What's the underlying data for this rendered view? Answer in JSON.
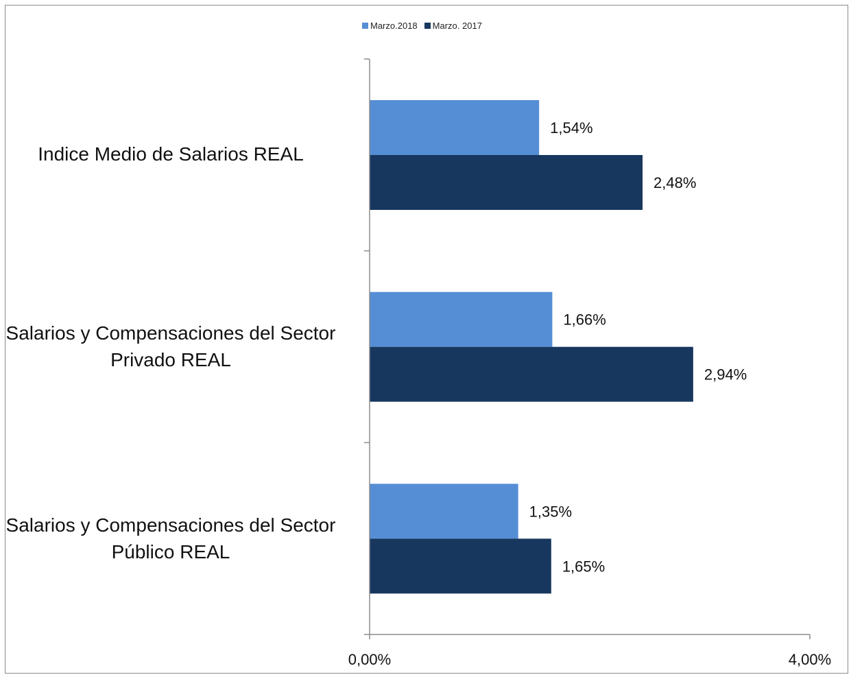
{
  "chart_data": {
    "type": "bar",
    "orientation": "horizontal",
    "categories": [
      "Indice Medio de Salarios REAL",
      "Salarios y Compensaciones del Sector Privado REAL",
      "Salarios y Compensaciones del Sector Público REAL"
    ],
    "category_lines": [
      [
        "Indice Medio de Salarios REAL"
      ],
      [
        "Salarios y Compensaciones del Sector",
        "Privado REAL"
      ],
      [
        "Salarios y Compensaciones del Sector",
        "Público REAL"
      ]
    ],
    "series": [
      {
        "name": "Marzo.2018",
        "color": "#558ed5",
        "values": [
          1.54,
          1.66,
          1.35
        ],
        "labels": [
          "1,54%",
          "1,66%",
          "1,35%"
        ]
      },
      {
        "name": "Marzo. 2017",
        "color": "#17375e",
        "values": [
          2.48,
          2.94,
          1.65
        ],
        "labels": [
          "2,48%",
          "2,94%",
          "1,65%"
        ]
      }
    ],
    "xlim": [
      0,
      4
    ],
    "x_tick_labels": [
      "0,00%",
      "4,00%"
    ],
    "legend_position": "top",
    "grid": false
  }
}
